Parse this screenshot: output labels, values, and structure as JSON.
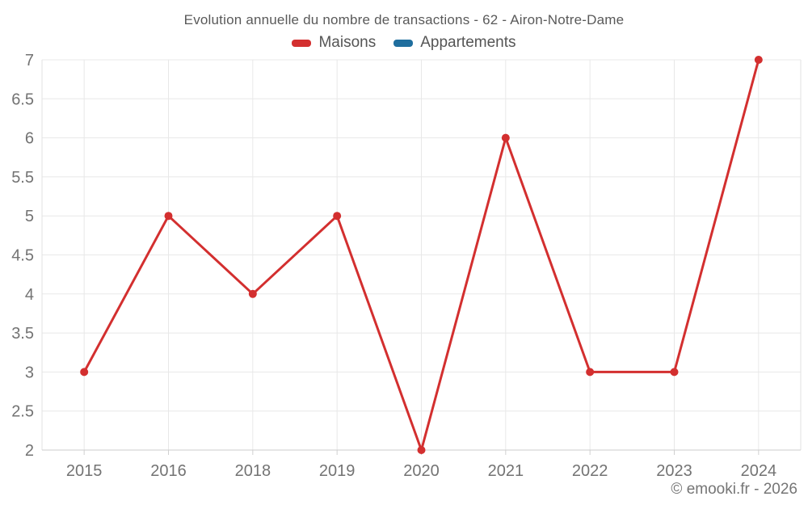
{
  "page": {
    "footer": "© emooki.fr - 2026"
  },
  "chart_data": {
    "type": "line",
    "title": "Evolution annuelle du nombre de transactions - 62 - Airon-Notre-Dame",
    "categories": [
      "2015",
      "2016",
      "2018",
      "2019",
      "2020",
      "2021",
      "2022",
      "2023",
      "2024"
    ],
    "series": [
      {
        "name": "Maisons",
        "color": "#d32f2f",
        "values": [
          3,
          5,
          4,
          5,
          2,
          6,
          3,
          3,
          7
        ]
      },
      {
        "name": "Appartements",
        "color": "#1f6e9e",
        "values": []
      }
    ],
    "ylim": [
      2,
      7
    ],
    "ytick_step": 0.5,
    "xlabel": "",
    "ylabel": "",
    "grid": true,
    "legend_position": "top",
    "colors": {
      "grid": "#e8e8e8",
      "plot_border": "#e2e2e2",
      "axis": "#cccccc",
      "tick": "#d0d0d0",
      "tick_label": "#737373",
      "title_text": "#595959"
    }
  }
}
